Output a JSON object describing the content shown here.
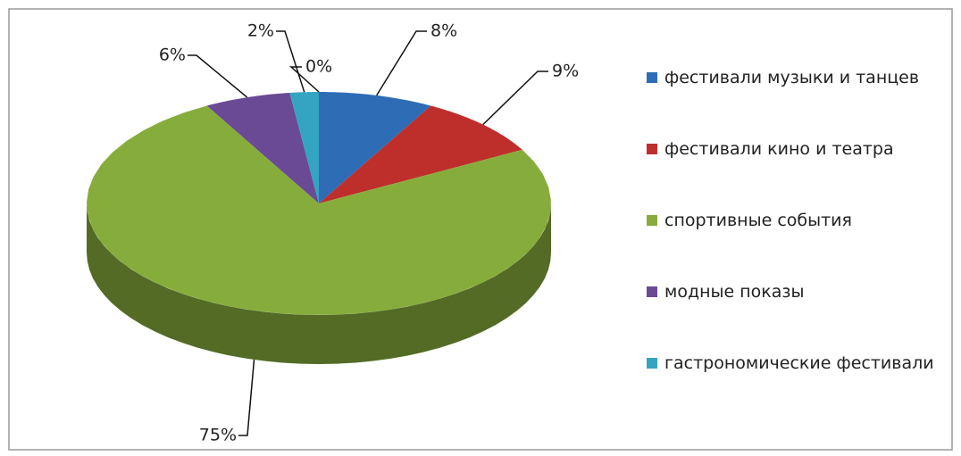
{
  "chart_data": {
    "type": "pie3d",
    "categories": [
      "фестивали музыки и танцев",
      "фестивали кино и театра",
      "спортивные события",
      "модные показы",
      "гастрономические фестивали",
      null
    ],
    "values": [
      8,
      9,
      75,
      6,
      2,
      0
    ],
    "value_labels": [
      "8%",
      "9%",
      "75%",
      "6%",
      "2%",
      "0%"
    ],
    "colors": [
      "#2e6db5",
      "#be2f2b",
      "#86ad3c",
      "#6a4a94",
      "#33a4c2",
      "#f79646"
    ],
    "legend": "right"
  }
}
